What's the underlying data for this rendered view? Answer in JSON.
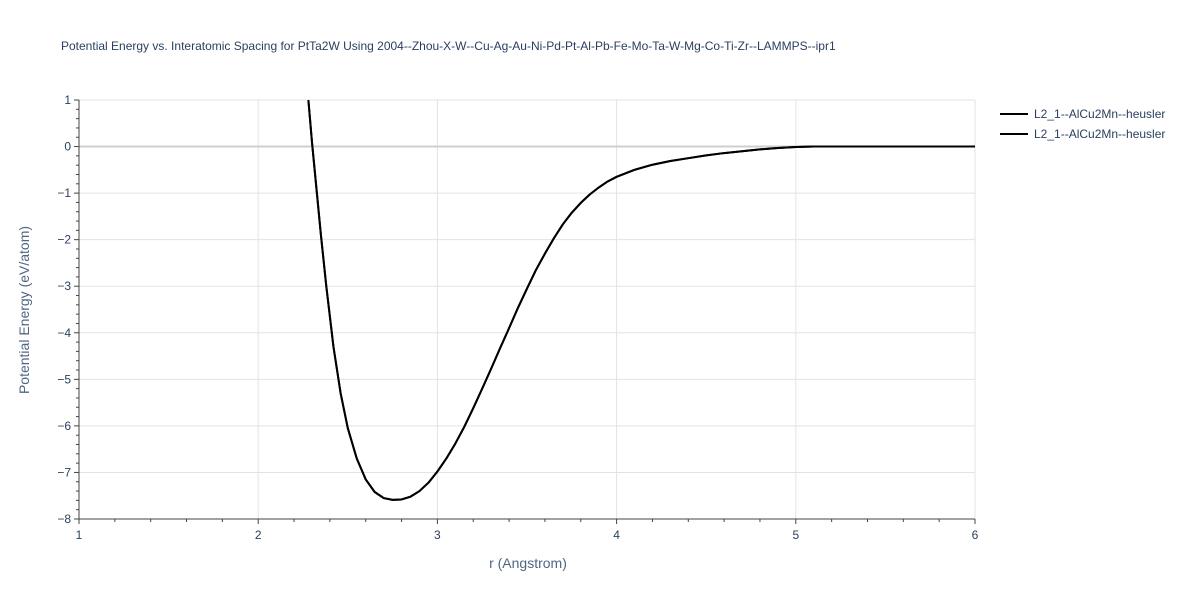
{
  "chart_data": {
    "type": "line",
    "title": "Potential Energy vs. Interatomic Spacing for PtTa2W Using 2004--Zhou-X-W--Cu-Ag-Au-Ni-Pd-Pt-Al-Pb-Fe-Mo-Ta-W-Mg-Co-Ti-Zr--LAMMPS--ipr1",
    "xlabel": "r (Angstrom)",
    "ylabel": "Potential Energy (eV/atom)",
    "xlim": [
      1,
      6
    ],
    "ylim": [
      -8,
      1
    ],
    "xticks": [
      1,
      2,
      3,
      4,
      5,
      6
    ],
    "xtick_labels": [
      "1",
      "2",
      "3",
      "4",
      "5",
      "6"
    ],
    "yticks": [
      1,
      0,
      -1,
      -2,
      -3,
      -4,
      -5,
      -6,
      -7,
      -8
    ],
    "ytick_labels": [
      "1",
      "0",
      "−1",
      "−2",
      "−3",
      "−4",
      "−5",
      "−6",
      "−7",
      "−8"
    ],
    "grid": true,
    "legend_position": "top-right",
    "series": [
      {
        "name": "L2_1--AlCu2Mn--heusler",
        "color": "#000000",
        "x": [
          2.28,
          2.3,
          2.32,
          2.35,
          2.38,
          2.42,
          2.46,
          2.5,
          2.55,
          2.6,
          2.65,
          2.7,
          2.75,
          2.8,
          2.85,
          2.9,
          2.95,
          3.0,
          3.05,
          3.1,
          3.15,
          3.2,
          3.25,
          3.3,
          3.35,
          3.4,
          3.45,
          3.5,
          3.55,
          3.6,
          3.65,
          3.7,
          3.75,
          3.8,
          3.85,
          3.9,
          3.95,
          4.0,
          4.1,
          4.2,
          4.3,
          4.4,
          4.5,
          4.6,
          4.7,
          4.8,
          4.9,
          5.0,
          5.1,
          5.2,
          5.3,
          5.4,
          5.5,
          5.6,
          5.7,
          5.8,
          5.9,
          6.0
        ],
        "y": [
          1.0,
          0.1,
          -0.7,
          -1.9,
          -3.0,
          -4.3,
          -5.3,
          -6.05,
          -6.7,
          -7.15,
          -7.42,
          -7.55,
          -7.59,
          -7.58,
          -7.52,
          -7.4,
          -7.22,
          -6.98,
          -6.7,
          -6.38,
          -6.02,
          -5.62,
          -5.2,
          -4.77,
          -4.33,
          -3.9,
          -3.46,
          -3.05,
          -2.65,
          -2.3,
          -1.97,
          -1.67,
          -1.42,
          -1.21,
          -1.03,
          -0.88,
          -0.75,
          -0.65,
          -0.5,
          -0.39,
          -0.31,
          -0.25,
          -0.19,
          -0.14,
          -0.1,
          -0.06,
          -0.03,
          -0.01,
          0.0,
          0.0,
          0.0,
          0.0,
          0.0,
          0.0,
          0.0,
          0.0,
          0.0,
          0.0
        ]
      },
      {
        "name": "L2_1--AlCu2Mn--heusler",
        "color": "#000000",
        "x": [
          2.28,
          2.3,
          2.32,
          2.35,
          2.38,
          2.42,
          2.46,
          2.5,
          2.55,
          2.6,
          2.65,
          2.7,
          2.75,
          2.8,
          2.85,
          2.9,
          2.95,
          3.0,
          3.05,
          3.1,
          3.15,
          3.2,
          3.25,
          3.3,
          3.35,
          3.4,
          3.45,
          3.5,
          3.55,
          3.6,
          3.65,
          3.7,
          3.75,
          3.8,
          3.85,
          3.9,
          3.95,
          4.0,
          4.1,
          4.2,
          4.3,
          4.4,
          4.5,
          4.6,
          4.7,
          4.8,
          4.9,
          5.0,
          5.1,
          5.2,
          5.3,
          5.4,
          5.5,
          5.6,
          5.7,
          5.8,
          5.9,
          6.0
        ],
        "y": [
          1.0,
          0.1,
          -0.7,
          -1.9,
          -3.0,
          -4.3,
          -5.3,
          -6.05,
          -6.7,
          -7.15,
          -7.42,
          -7.55,
          -7.59,
          -7.58,
          -7.52,
          -7.4,
          -7.22,
          -6.98,
          -6.7,
          -6.38,
          -6.02,
          -5.62,
          -5.2,
          -4.77,
          -4.33,
          -3.9,
          -3.46,
          -3.05,
          -2.65,
          -2.3,
          -1.97,
          -1.67,
          -1.42,
          -1.21,
          -1.03,
          -0.88,
          -0.75,
          -0.65,
          -0.5,
          -0.39,
          -0.31,
          -0.25,
          -0.19,
          -0.14,
          -0.1,
          -0.06,
          -0.03,
          -0.01,
          0.0,
          0.0,
          0.0,
          0.0,
          0.0,
          0.0,
          0.0,
          0.0,
          0.0,
          0.0
        ]
      }
    ]
  }
}
